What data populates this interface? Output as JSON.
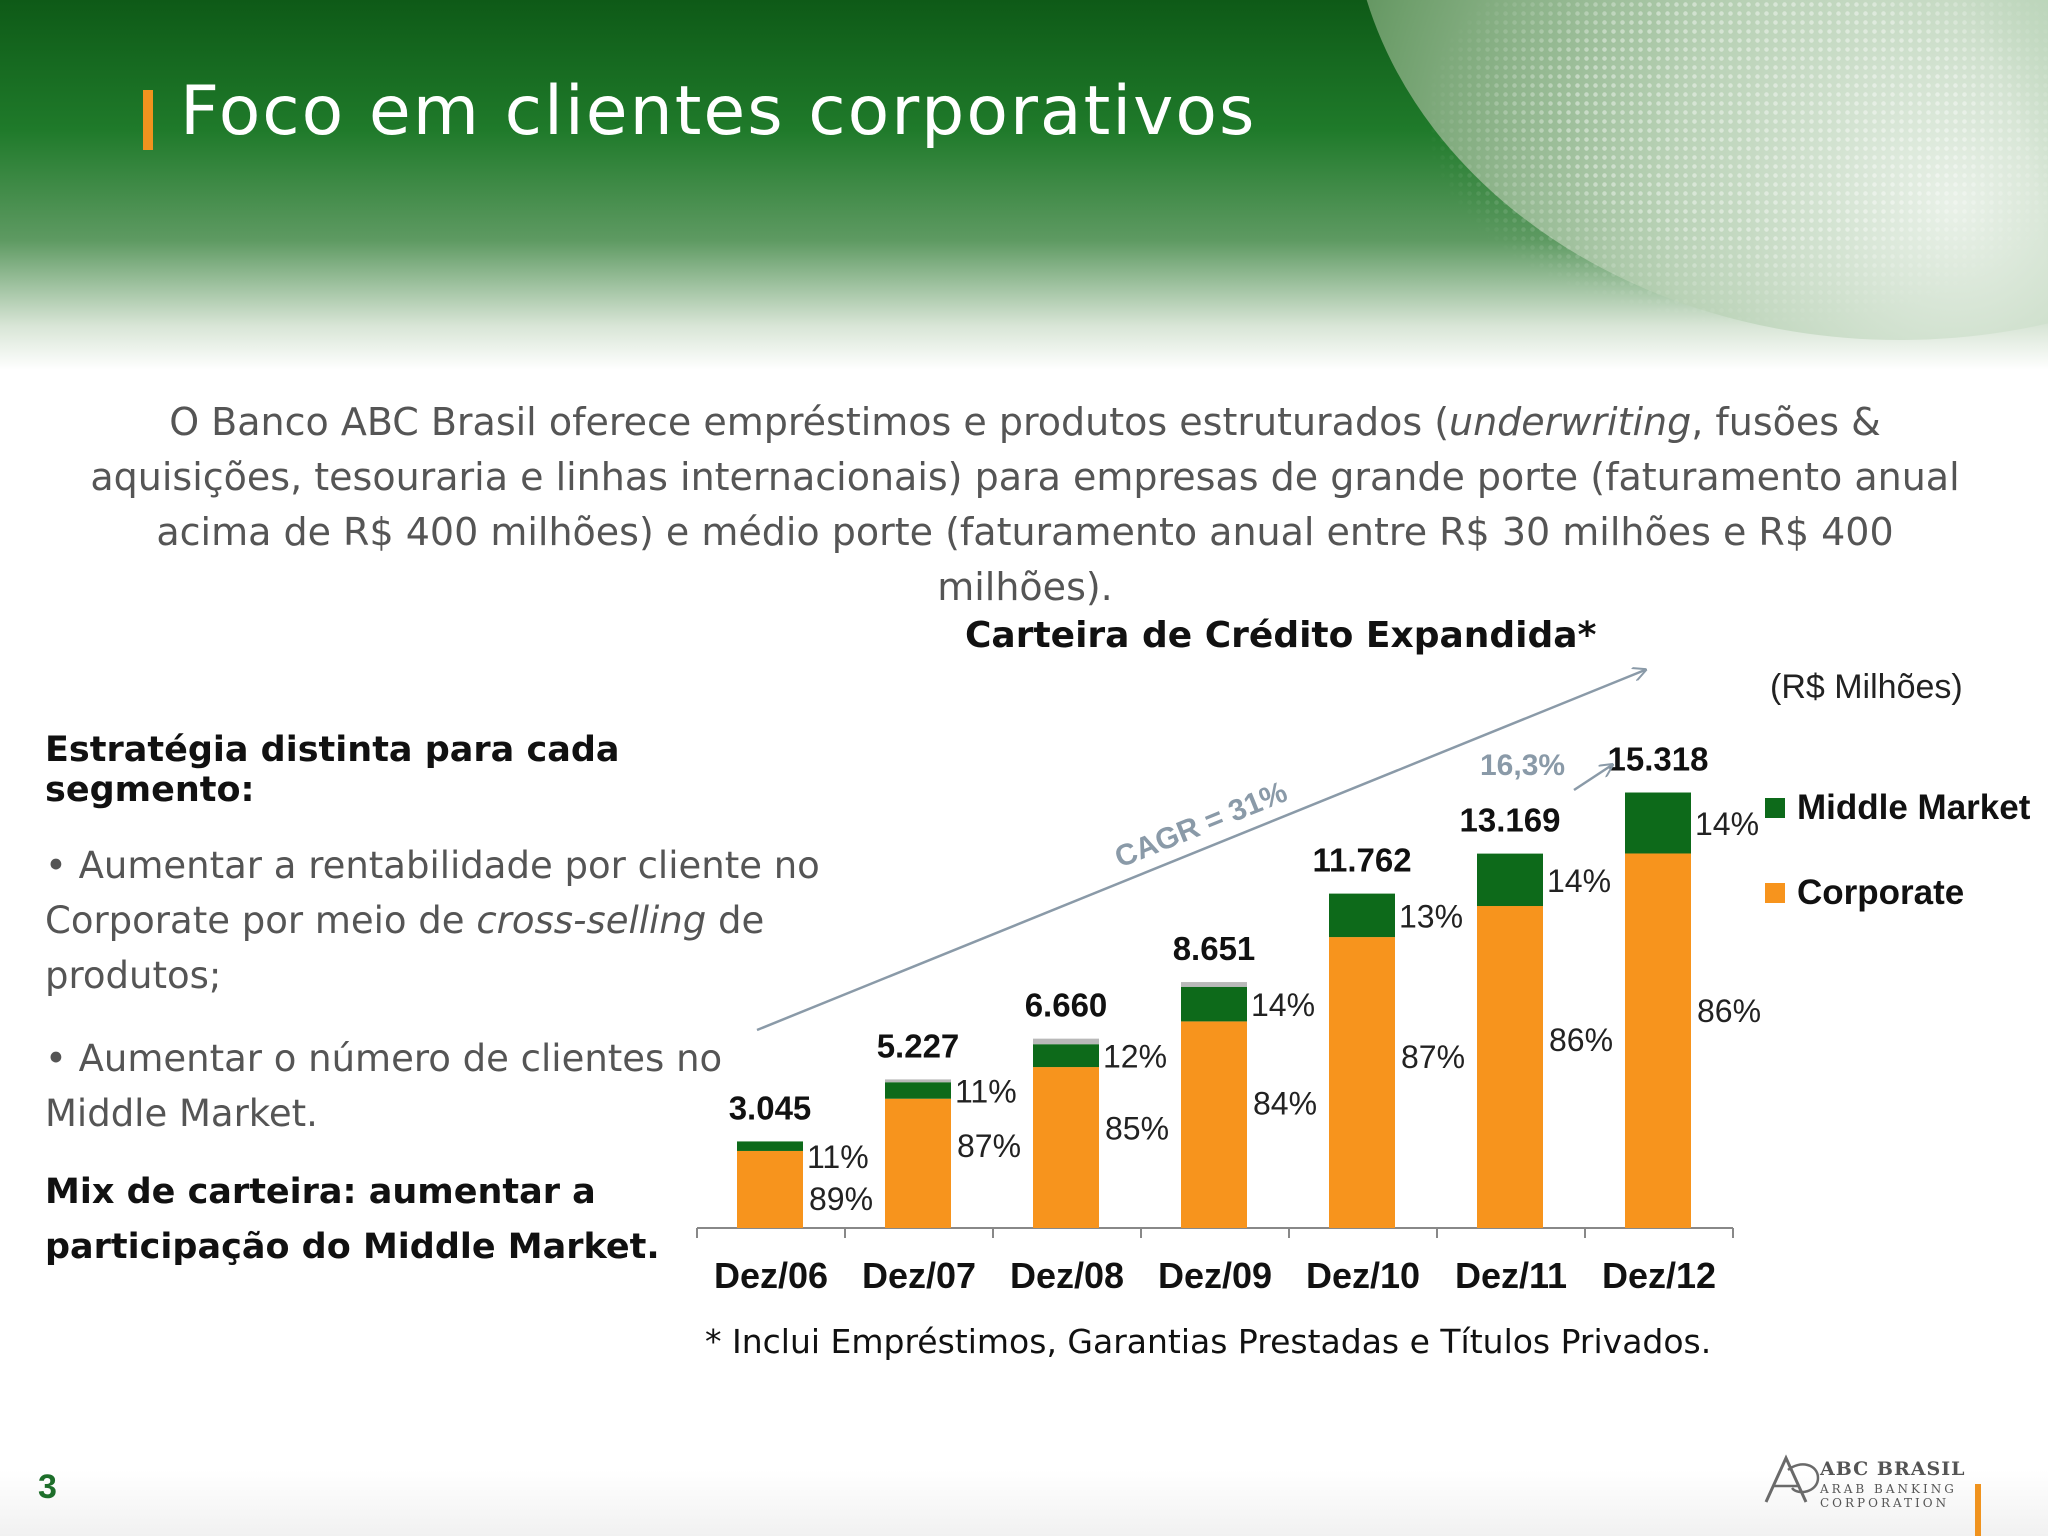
{
  "header": {
    "title": "Foco em clientes corporativos"
  },
  "intro": {
    "part1": "O Banco ABC Brasil oferece empréstimos e produtos estruturados (",
    "italic": "underwriting",
    "part2": ", fusões & aquisições, tesouraria e linhas internacionais) para empresas  de grande porte (faturamento anual acima de R$ 400 milhões) e médio porte (faturamento anual entre R$ 30 milhões e R$ 400 milhões)."
  },
  "strategy": {
    "heading": "Estratégia distinta para cada segmento:",
    "bullet1_pre": "• Aumentar a rentabilidade por cliente no Corporate por meio de ",
    "bullet1_italic": "cross-selling",
    "bullet1_post": " de produtos;",
    "bullet2": "• Aumentar o número de clientes no Middle Market.",
    "mix": "Mix de carteira: aumentar a participação do Middle Market."
  },
  "chart_data": {
    "type": "bar",
    "stacked": true,
    "title": "Carteira de Crédito Expandida*",
    "unit": "(R$ Milhões)",
    "categories": [
      "Dez/06",
      "Dez/07",
      "Dez/08",
      "Dez/09",
      "Dez/10",
      "Dez/11",
      "Dez/12"
    ],
    "totals": [
      "3.045",
      "5.227",
      "6.660",
      "8.651",
      "11.762",
      "13.169",
      "15.318"
    ],
    "total_values": [
      3045,
      5227,
      6660,
      8651,
      11762,
      13169,
      15318
    ],
    "series": [
      {
        "name": "Corporate",
        "color": "#f7941d",
        "pct_labels": [
          "89%",
          "87%",
          "85%",
          "84%",
          "87%",
          "86%",
          "86%"
        ],
        "pct_values": [
          89,
          87,
          85,
          84,
          87,
          86,
          86
        ]
      },
      {
        "name": "Middle Market",
        "color": "#0d6a1a",
        "pct_labels": [
          "11%",
          "11%",
          "12%",
          "14%",
          "13%",
          "14%",
          "14%"
        ],
        "pct_values": [
          11,
          11,
          12,
          14,
          13,
          14,
          14
        ]
      }
    ],
    "other_color": "#b9b9b9",
    "annotations": {
      "cagr": "CAGR = 31%",
      "growth": "16,3%"
    },
    "legend_order": [
      "Middle Market",
      "Corporate"
    ],
    "legend_position": "right",
    "footnote": "* Inclui Empréstimos, Garantias Prestadas e Títulos Privados."
  },
  "footer": {
    "page": "3",
    "logo_line1": "ABC BRASIL",
    "logo_line2": "ARAB BANKING",
    "logo_line3": "CORPORATION"
  }
}
